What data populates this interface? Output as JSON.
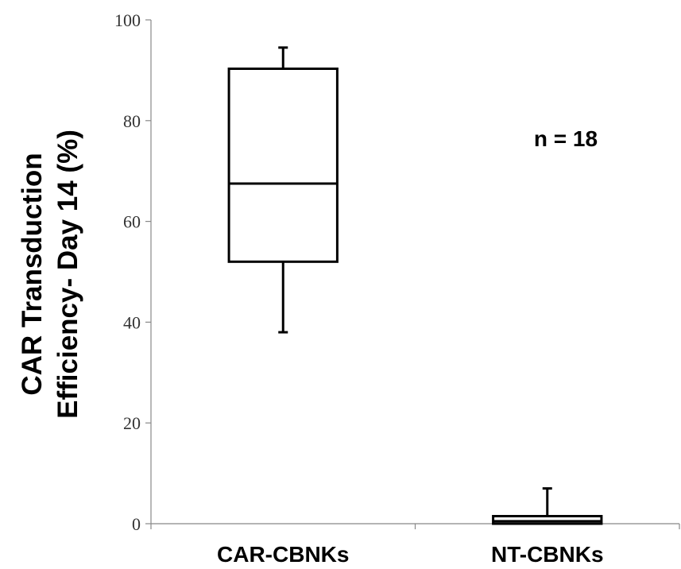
{
  "chart_data": {
    "type": "box",
    "categories": [
      "CAR-CBNKs",
      "NT-CBNKs"
    ],
    "series": [
      {
        "min": 38,
        "q1": 52,
        "median": 67.5,
        "q3": 90.3,
        "max": 94.5
      },
      {
        "min": 0,
        "q1": 0,
        "median": 0.5,
        "q3": 1.5,
        "max": 7
      }
    ],
    "ylabel_lines": [
      "CAR Transduction",
      "Efficiency- Day 14 (%)"
    ],
    "ylim": [
      0,
      100
    ],
    "yticks": [
      0,
      20,
      40,
      60,
      80,
      100
    ],
    "annotation": "n = 18",
    "grid": false,
    "colors": {
      "stroke": "#000000",
      "axis": "#888888"
    }
  }
}
